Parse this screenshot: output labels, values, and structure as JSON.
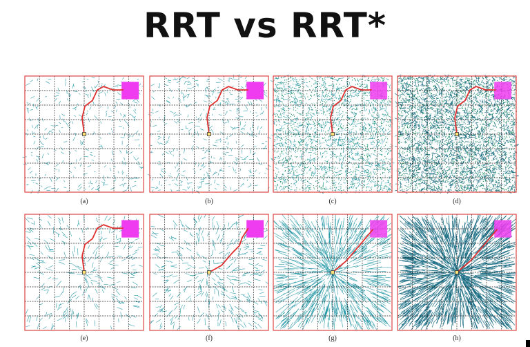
{
  "title": "RRT vs RRT*",
  "colors": {
    "border": "#e05050",
    "grid": "#222222",
    "tree": "#2a9aa8",
    "tree_dark": "#1d6f85",
    "path": "#e03030",
    "goal": "#f03cf0",
    "start_fill": "#ffe27a"
  },
  "panels": [
    {
      "caption": "(a)",
      "algo": "rrt",
      "density": 1
    },
    {
      "caption": "(b)",
      "algo": "rrt",
      "density": 1.3
    },
    {
      "caption": "(c)",
      "algo": "rrt",
      "density": 2.8
    },
    {
      "caption": "(d)",
      "algo": "rrt",
      "density": 5
    },
    {
      "caption": "(e)",
      "algo": "rrtstar",
      "density": 1
    },
    {
      "caption": "(f)",
      "algo": "rrtstar",
      "density": 1.3
    },
    {
      "caption": "(g)",
      "algo": "rrtstar",
      "density": 2.8
    },
    {
      "caption": "(h)",
      "algo": "rrtstar",
      "density": 5
    }
  ]
}
